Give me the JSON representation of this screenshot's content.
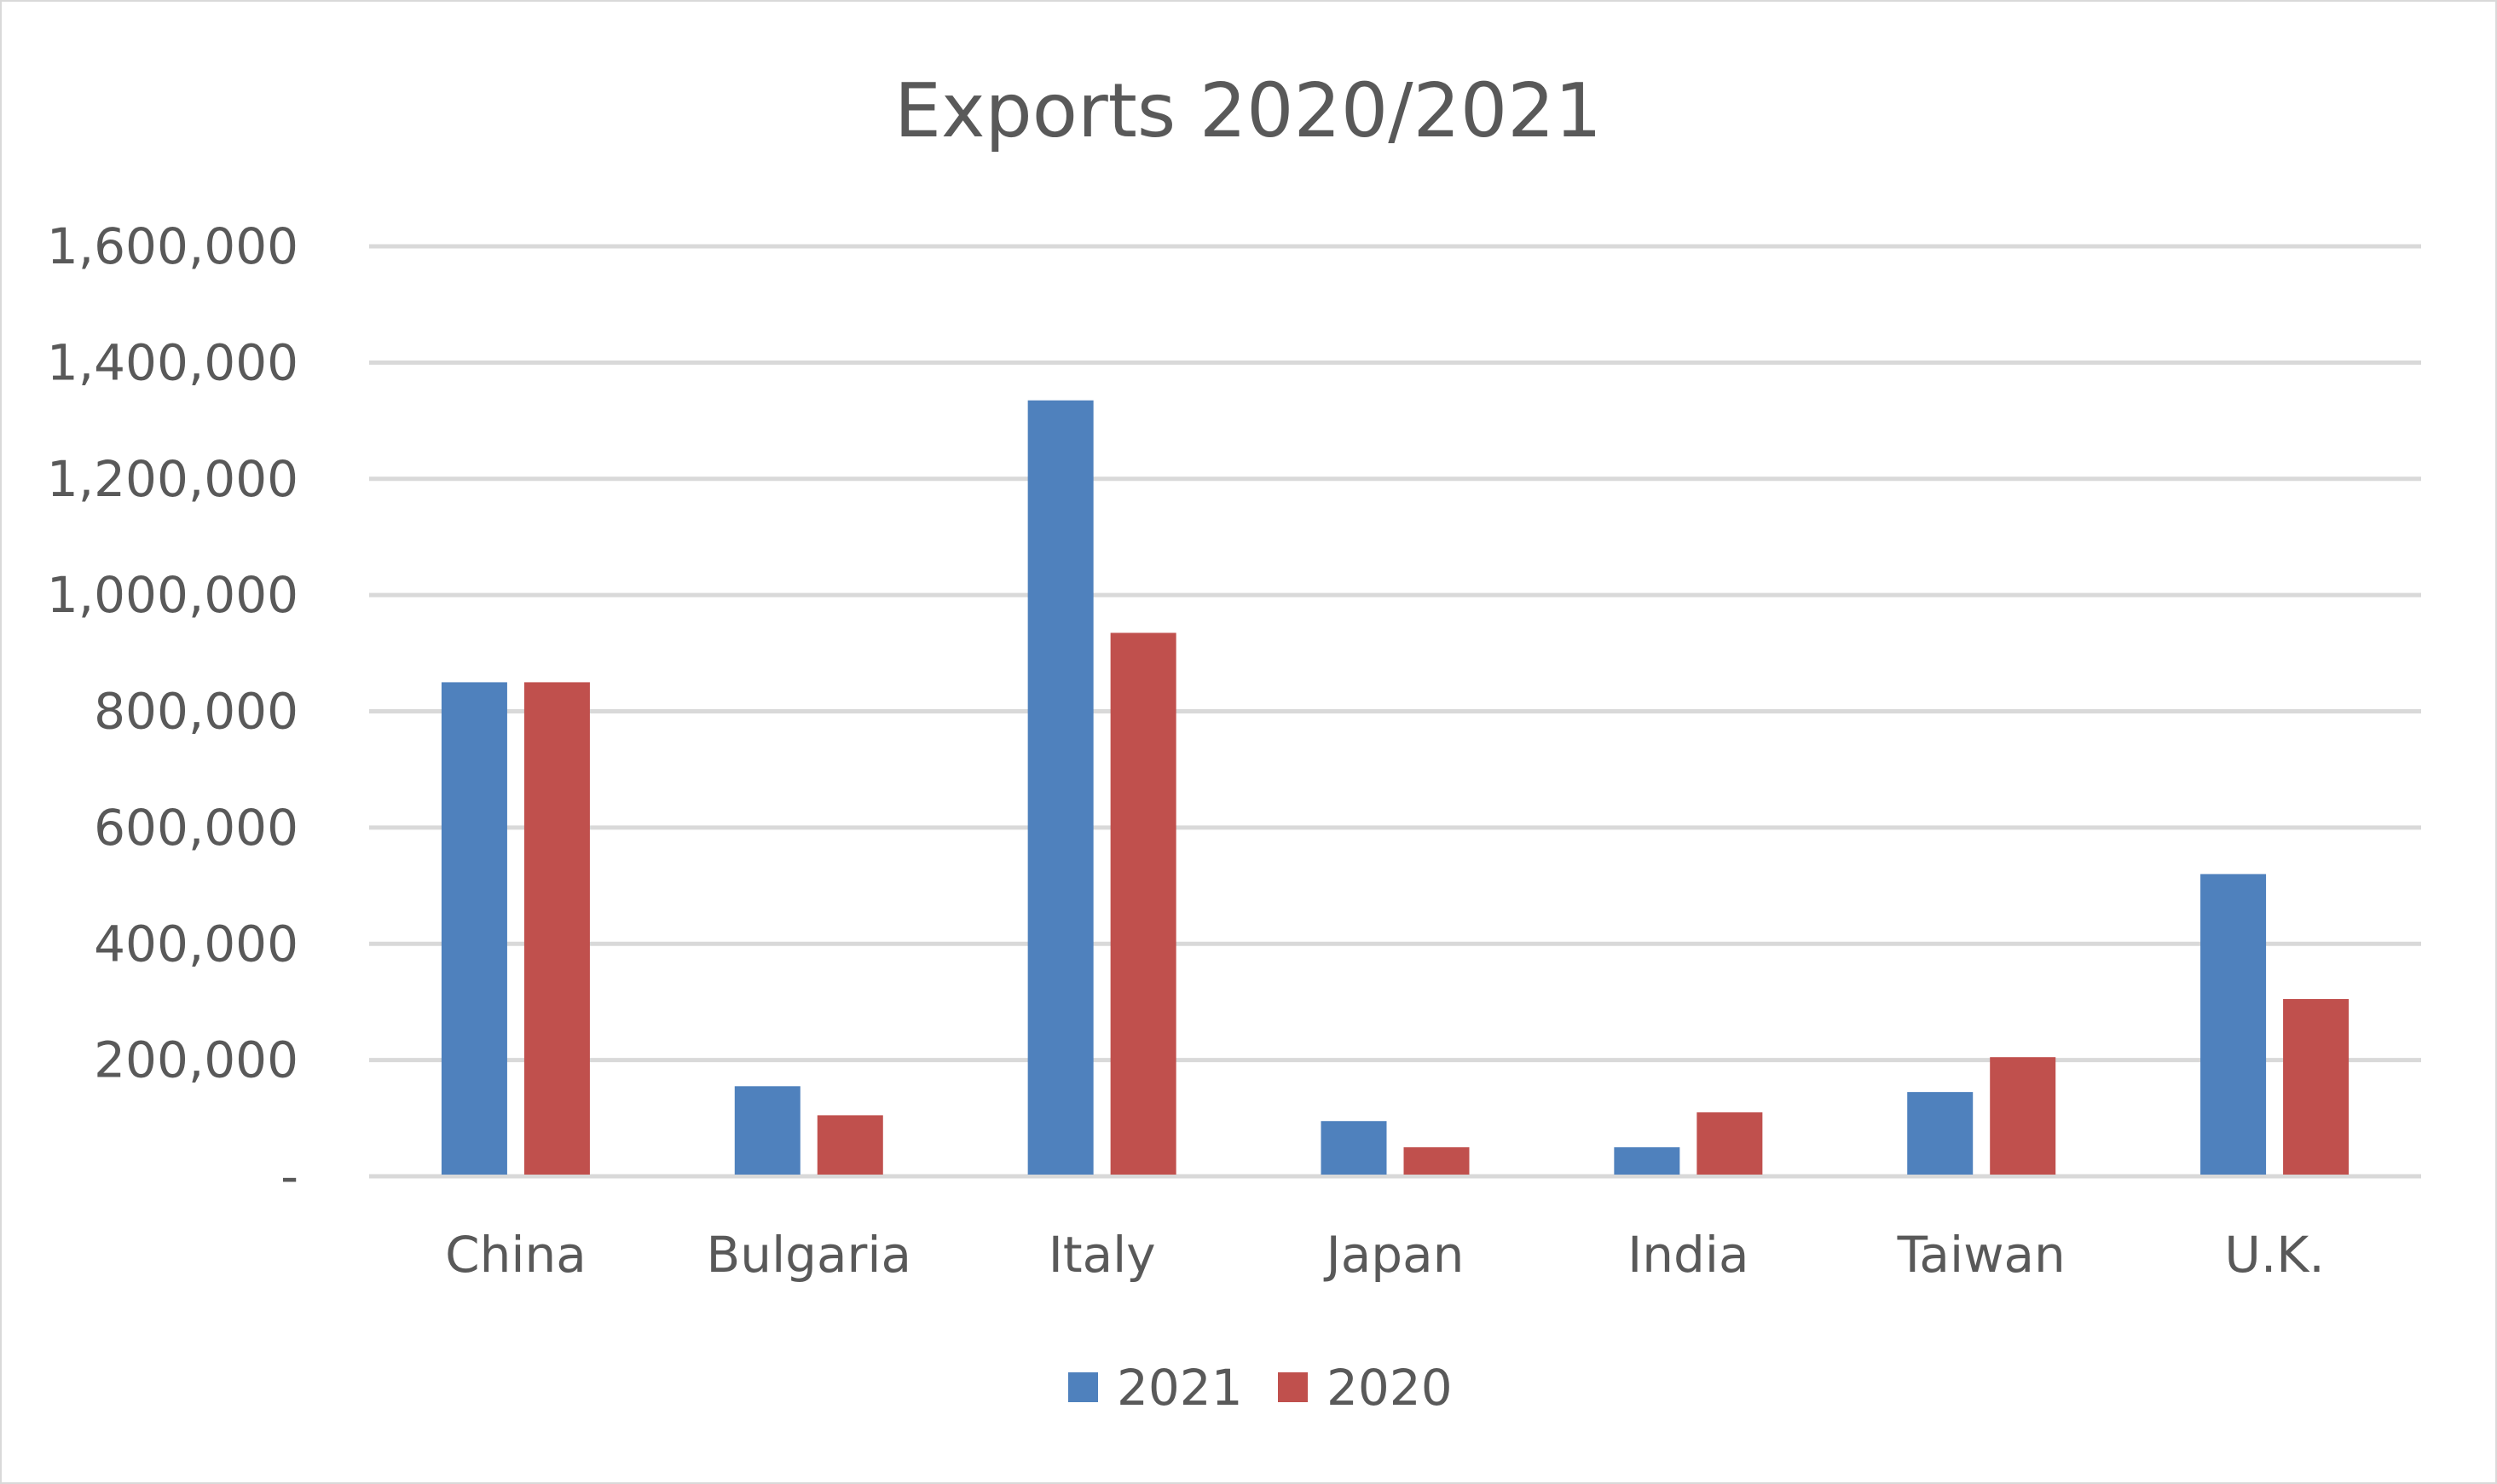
{
  "chart_data": {
    "type": "bar",
    "title": "Exports 2020/2021",
    "xlabel": "",
    "ylabel": "",
    "categories": [
      "China",
      "Bulgaria",
      "Italy",
      "Japan",
      "India",
      "Taiwan",
      "U.K."
    ],
    "series": [
      {
        "name": "2021",
        "color": "#4f81bd",
        "values": [
          850000,
          155000,
          1335000,
          95000,
          50000,
          145000,
          520000
        ]
      },
      {
        "name": "2020",
        "color": "#c0504d",
        "values": [
          850000,
          105000,
          935000,
          50000,
          110000,
          205000,
          305000
        ]
      }
    ],
    "ylim": [
      0,
      1600000
    ],
    "yticks": [
      0,
      200000,
      400000,
      600000,
      800000,
      1000000,
      1200000,
      1400000,
      1600000
    ],
    "ytick_labels": [
      "-",
      "200,000",
      "400,000",
      "600,000",
      "800,000",
      "1,000,000",
      "1,200,000",
      "1,400,000",
      "1,600,000"
    ],
    "grid": true,
    "legend_position": "bottom",
    "gridline_color": "#d9d9d9"
  }
}
